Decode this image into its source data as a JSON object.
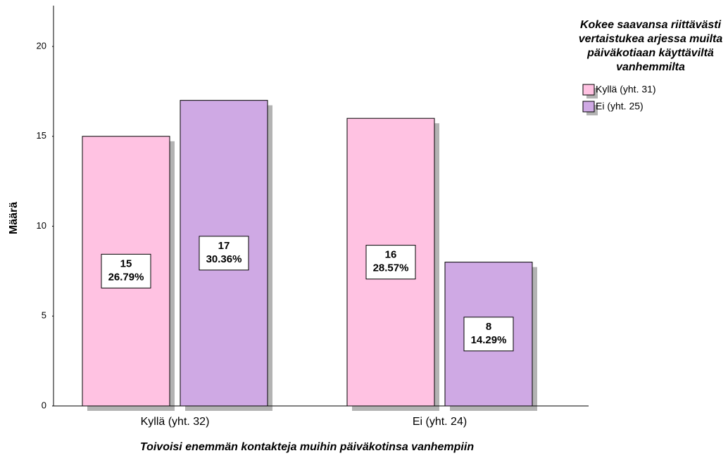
{
  "chart_data": {
    "type": "bar",
    "categories": [
      "Kyllä (yht. 32)",
      "Ei (yht. 24)"
    ],
    "series": [
      {
        "name": "Kyllä (yht. 31)",
        "color": "#ffc2e2",
        "values": [
          15,
          16
        ],
        "percent_labels": [
          "26.79%",
          "28.57%"
        ]
      },
      {
        "name": "Ei (yht. 25)",
        "color": "#cfa9e4",
        "values": [
          17,
          8
        ],
        "percent_labels": [
          "30.36%",
          "14.29%"
        ]
      }
    ],
    "ylim": [
      0,
      22.27
    ],
    "yticks": [
      0,
      5,
      10,
      15,
      20
    ],
    "y_label": "Määrä",
    "x_label": "Toivoisi enemmän kontakteja muihin päiväkotinsa vanhempiin",
    "legend_title_lines": [
      "Kokee saavansa riittävästi",
      "vertaistukea arjessa muilta",
      "päiväkotiaan käyttäviltä",
      "vanhemmilta"
    ],
    "legend": "top-right",
    "grid": false
  }
}
